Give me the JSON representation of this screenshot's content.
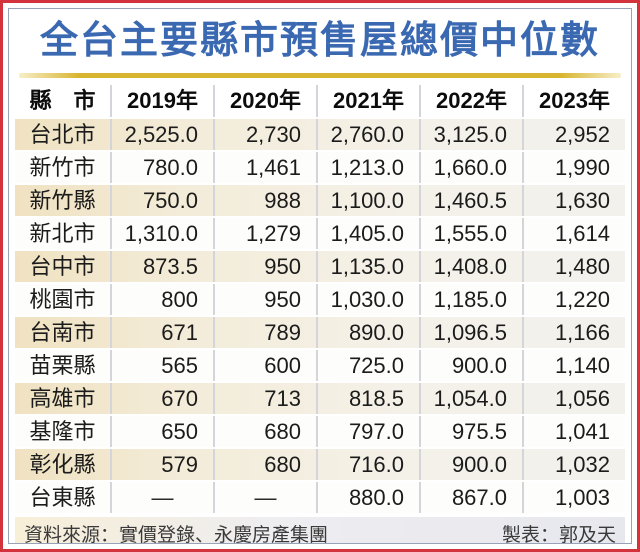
{
  "page": {
    "title": "全台主要縣市預售屋總價中位數"
  },
  "colors": {
    "title_blue": "#3a69b2",
    "rule_gold": "#d8b52f",
    "border_red": "#d2333c",
    "frame_gray": "#99a2b8",
    "row_cream": "#f0e2c1",
    "divider": "#d4d5da",
    "footer_cream": "#f8efd8",
    "footer_gray": "#e7e8ee"
  },
  "table": {
    "header": [
      "縣　市",
      "2019年",
      "2020年",
      "2021年",
      "2022年",
      "2023年"
    ],
    "rows": [
      {
        "county": "台北市",
        "values": [
          "2,525.0",
          "2,730",
          "2,760.0",
          "3,125.0",
          "2,952"
        ]
      },
      {
        "county": "新竹市",
        "values": [
          "780.0",
          "1,461",
          "1,213.0",
          "1,660.0",
          "1,990"
        ]
      },
      {
        "county": "新竹縣",
        "values": [
          "750.0",
          "988",
          "1,100.0",
          "1,460.5",
          "1,630"
        ]
      },
      {
        "county": "新北市",
        "values": [
          "1,310.0",
          "1,279",
          "1,405.0",
          "1,555.0",
          "1,614"
        ]
      },
      {
        "county": "台中市",
        "values": [
          "873.5",
          "950",
          "1,135.0",
          "1,408.0",
          "1,480"
        ]
      },
      {
        "county": "桃園市",
        "values": [
          "800",
          "950",
          "1,030.0",
          "1,185.0",
          "1,220"
        ]
      },
      {
        "county": "台南市",
        "values": [
          "671",
          "789",
          "890.0",
          "1,096.5",
          "1,166"
        ]
      },
      {
        "county": "苗栗縣",
        "values": [
          "565",
          "600",
          "725.0",
          "900.0",
          "1,140"
        ]
      },
      {
        "county": "高雄市",
        "values": [
          "670",
          "713",
          "818.5",
          "1,054.0",
          "1,056"
        ]
      },
      {
        "county": "基隆市",
        "values": [
          "650",
          "680",
          "797.0",
          "975.5",
          "1,041"
        ]
      },
      {
        "county": "彰化縣",
        "values": [
          "579",
          "680",
          "716.0",
          "900.0",
          "1,032"
        ]
      },
      {
        "county": "台東縣",
        "values": [
          "—",
          "—",
          "880.0",
          "867.0",
          "1,003"
        ]
      }
    ]
  },
  "footer": {
    "source": "資料來源：實價登錄、永慶房產集團",
    "credit": "製表：郭及天"
  },
  "chart_data": {
    "type": "table",
    "title": "全台主要縣市預售屋總價中位數",
    "columns": [
      "縣市",
      "2019年",
      "2020年",
      "2021年",
      "2022年",
      "2023年"
    ],
    "rows": [
      [
        "台北市",
        2525.0,
        2730,
        2760.0,
        3125.0,
        2952
      ],
      [
        "新竹市",
        780.0,
        1461,
        1213.0,
        1660.0,
        1990
      ],
      [
        "新竹縣",
        750.0,
        988,
        1100.0,
        1460.5,
        1630
      ],
      [
        "新北市",
        1310.0,
        1279,
        1405.0,
        1555.0,
        1614
      ],
      [
        "台中市",
        873.5,
        950,
        1135.0,
        1408.0,
        1480
      ],
      [
        "桃園市",
        800,
        950,
        1030.0,
        1185.0,
        1220
      ],
      [
        "台南市",
        671,
        789,
        890.0,
        1096.5,
        1166
      ],
      [
        "苗栗縣",
        565,
        600,
        725.0,
        900.0,
        1140
      ],
      [
        "高雄市",
        670,
        713,
        818.5,
        1054.0,
        1056
      ],
      [
        "基隆市",
        650,
        680,
        797.0,
        975.5,
        1041
      ],
      [
        "彰化縣",
        579,
        680,
        716.0,
        900.0,
        1032
      ],
      [
        "台東縣",
        null,
        null,
        880.0,
        867.0,
        1003
      ]
    ],
    "source": "資料來源：實價登錄、永慶房產集團",
    "credit": "製表：郭及天"
  }
}
